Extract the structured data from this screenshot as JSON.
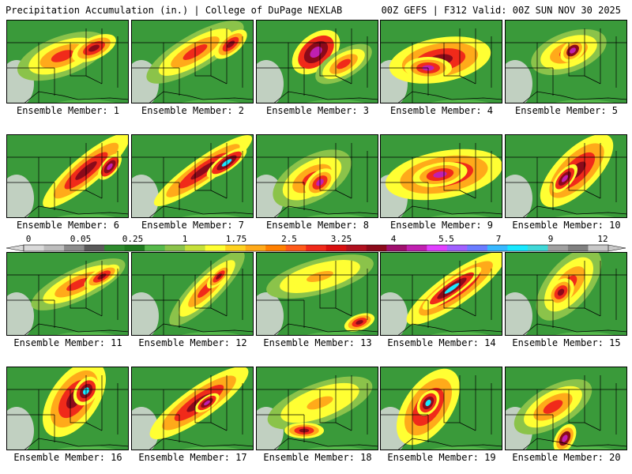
{
  "header": {
    "title": "Precipitation Accumulation (in.) | College of DuPage NEXLAB",
    "run_info": "00Z GEFS | F312 Valid: 00Z SUN NOV 30 2025"
  },
  "colorbar": {
    "tick_labels": [
      "0",
      "0.05",
      "0.25",
      "1",
      "1.75",
      "2.5",
      "3.25",
      "4",
      "5.5",
      "7",
      "9",
      "12"
    ],
    "colors": [
      "#d9d9d9",
      "#bdbdbd",
      "#8c8c8c",
      "#5a5a5a",
      "#2e8b2e",
      "#1f7a1f",
      "#56b94b",
      "#8bc34a",
      "#c6e03a",
      "#ffff33",
      "#ffd21f",
      "#ffaa1a",
      "#ff8000",
      "#ff5a1a",
      "#f02a1a",
      "#d90f0f",
      "#b0101e",
      "#8b0a1a",
      "#a0106e",
      "#c020b0",
      "#e040ff",
      "#a060ff",
      "#6a7cff",
      "#38b8ff",
      "#18e8ff",
      "#40d8d8",
      "#a0a0a0",
      "#808080",
      "#c8c8c8"
    ]
  },
  "members": [
    {
      "label": "Ensemble Member: 1"
    },
    {
      "label": "Ensemble Member: 2"
    },
    {
      "label": "Ensemble Member: 3"
    },
    {
      "label": "Ensemble Member: 4"
    },
    {
      "label": "Ensemble Member: 5"
    },
    {
      "label": "Ensemble Member: 6"
    },
    {
      "label": "Ensemble Member: 7"
    },
    {
      "label": "Ensemble Member: 8"
    },
    {
      "label": "Ensemble Member: 9"
    },
    {
      "label": "Ensemble Member: 10"
    },
    {
      "label": "Ensemble Member: 11"
    },
    {
      "label": "Ensemble Member: 12"
    },
    {
      "label": "Ensemble Member: 13"
    },
    {
      "label": "Ensemble Member: 14"
    },
    {
      "label": "Ensemble Member: 15"
    },
    {
      "label": "Ensemble Member: 16"
    },
    {
      "label": "Ensemble Member: 17"
    },
    {
      "label": "Ensemble Member: 18"
    },
    {
      "label": "Ensemble Member: 19"
    },
    {
      "label": "Ensemble Member: 20"
    }
  ]
}
